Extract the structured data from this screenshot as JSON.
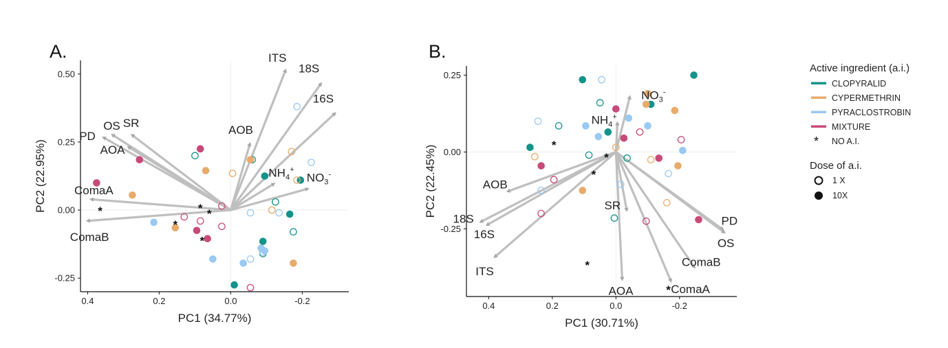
{
  "colors": {
    "CLOPYRALID": "#13938A",
    "CYPERMETHRIN": "#E8AB6B",
    "PYRACLOSTROBIN": "#9AC9F2",
    "MIXTURE": "#C84A78",
    "arrow": "#bfbfbf"
  },
  "legend": {
    "title_ai": "Active ingredient (a.i.)",
    "items": [
      {
        "label": "CLOPYRALID",
        "group": "CLOPYRALID"
      },
      {
        "label": "CYPERMETHRIN",
        "group": "CYPERMETHRIN"
      },
      {
        "label": "PYRACLOSTROBIN",
        "group": "PYRACLOSTROBIN"
      },
      {
        "label": "MIXTURE",
        "group": "MIXTURE"
      }
    ],
    "none_label": "NO A.I.",
    "title_dose": "Dose of a.i.",
    "dose_items": [
      {
        "label": "1 X",
        "fill": "open"
      },
      {
        "label": "10X",
        "fill": "filled"
      }
    ]
  },
  "chart_data": [
    {
      "type": "scatter",
      "panel": "A.",
      "xlabel": "PC1 (34.77%)",
      "ylabel": "PC2 (22.95%)",
      "xlim": [
        0.42,
        -0.33
      ],
      "ylim": [
        -0.3,
        0.55
      ],
      "x_reversed": true,
      "xticks": [
        {
          "v": 0.4,
          "t": "0.4"
        },
        {
          "v": 0.2,
          "t": "0.2"
        },
        {
          "v": 0.0,
          "t": "0.0"
        },
        {
          "v": -0.2,
          "t": "-0.2"
        }
      ],
      "yticks": [
        {
          "v": 0.5,
          "t": "0.50"
        },
        {
          "v": 0.25,
          "t": "0.25"
        },
        {
          "v": 0.0,
          "t": "0.00"
        },
        {
          "v": -0.25,
          "t": "-0.25"
        }
      ],
      "vectors": [
        {
          "name": "ITS",
          "x": -0.155,
          "y": 0.52
        },
        {
          "name": "18S",
          "x": -0.255,
          "y": 0.47
        },
        {
          "name": "16S",
          "x": -0.295,
          "y": 0.36
        },
        {
          "name": "AOB",
          "x": -0.055,
          "y": 0.25
        },
        {
          "name": "NH4+",
          "x": -0.125,
          "y": 0.1
        },
        {
          "name": "NO3-",
          "x": -0.22,
          "y": 0.08
        },
        {
          "name": "OS",
          "x": 0.335,
          "y": 0.28
        },
        {
          "name": "PD",
          "x": 0.36,
          "y": 0.27
        },
        {
          "name": "SR",
          "x": 0.28,
          "y": 0.28
        },
        {
          "name": "AOA",
          "x": 0.29,
          "y": 0.235
        },
        {
          "name": "ComaA",
          "x": 0.395,
          "y": 0.04
        },
        {
          "name": "ComaB",
          "x": 0.405,
          "y": -0.04
        }
      ],
      "points": [
        {
          "g": "CLOPYRALID",
          "d": "1X",
          "x": -0.06,
          "y": 0.185
        },
        {
          "g": "CLOPYRALID",
          "d": "1X",
          "x": -0.125,
          "y": 0.03
        },
        {
          "g": "CLOPYRALID",
          "d": "1X",
          "x": -0.175,
          "y": -0.08
        },
        {
          "g": "CLOPYRALID",
          "d": "1X",
          "x": 0.1,
          "y": 0.2
        },
        {
          "g": "CLOPYRALID",
          "d": "1X",
          "x": -0.09,
          "y": -0.16
        },
        {
          "g": "CLOPYRALID",
          "d": "10X",
          "x": -0.095,
          "y": 0.125
        },
        {
          "g": "CLOPYRALID",
          "d": "10X",
          "x": -0.195,
          "y": 0.11
        },
        {
          "g": "CLOPYRALID",
          "d": "10X",
          "x": -0.165,
          "y": -0.015
        },
        {
          "g": "CLOPYRALID",
          "d": "10X",
          "x": -0.09,
          "y": -0.115
        },
        {
          "g": "CLOPYRALID",
          "d": "10X",
          "x": -0.01,
          "y": -0.275
        },
        {
          "g": "CYPERMETHRIN",
          "d": "1X",
          "x": -0.17,
          "y": 0.215
        },
        {
          "g": "CYPERMETHRIN",
          "d": "1X",
          "x": -0.005,
          "y": 0.135
        },
        {
          "g": "CYPERMETHRIN",
          "d": "1X",
          "x": -0.185,
          "y": 0.11
        },
        {
          "g": "CYPERMETHRIN",
          "d": "1X",
          "x": -0.115,
          "y": 0.0
        },
        {
          "g": "CYPERMETHRIN",
          "d": "10X",
          "x": 0.07,
          "y": 0.145
        },
        {
          "g": "CYPERMETHRIN",
          "d": "10X",
          "x": -0.055,
          "y": 0.185
        },
        {
          "g": "CYPERMETHRIN",
          "d": "10X",
          "x": 0.275,
          "y": 0.055
        },
        {
          "g": "CYPERMETHRIN",
          "d": "10X",
          "x": 0.155,
          "y": -0.065
        },
        {
          "g": "CYPERMETHRIN",
          "d": "10X",
          "x": -0.175,
          "y": -0.195
        },
        {
          "g": "PYRACLOSTROBIN",
          "d": "1X",
          "x": -0.185,
          "y": 0.38
        },
        {
          "g": "PYRACLOSTROBIN",
          "d": "1X",
          "x": -0.225,
          "y": 0.175
        },
        {
          "g": "PYRACLOSTROBIN",
          "d": "1X",
          "x": -0.055,
          "y": -0.01
        },
        {
          "g": "PYRACLOSTROBIN",
          "d": "1X",
          "x": -0.135,
          "y": -0.01
        },
        {
          "g": "PYRACLOSTROBIN",
          "d": "1X",
          "x": -0.055,
          "y": -0.18
        },
        {
          "g": "PYRACLOSTROBIN",
          "d": "1X",
          "x": -0.09,
          "y": -0.155
        },
        {
          "g": "PYRACLOSTROBIN",
          "d": "10X",
          "x": 0.215,
          "y": -0.045
        },
        {
          "g": "PYRACLOSTROBIN",
          "d": "10X",
          "x": 0.05,
          "y": -0.18
        },
        {
          "g": "PYRACLOSTROBIN",
          "d": "10X",
          "x": -0.035,
          "y": -0.195
        },
        {
          "g": "PYRACLOSTROBIN",
          "d": "10X",
          "x": -0.085,
          "y": -0.14
        },
        {
          "g": "PYRACLOSTROBIN",
          "d": "10X",
          "x": -0.095,
          "y": -0.15
        },
        {
          "g": "MIXTURE",
          "d": "1X",
          "x": 0.025,
          "y": 0.015
        },
        {
          "g": "MIXTURE",
          "d": "1X",
          "x": 0.13,
          "y": -0.025
        },
        {
          "g": "MIXTURE",
          "d": "1X",
          "x": 0.085,
          "y": -0.04
        },
        {
          "g": "MIXTURE",
          "d": "1X",
          "x": 0.025,
          "y": -0.06
        },
        {
          "g": "MIXTURE",
          "d": "1X",
          "x": -0.055,
          "y": -0.285
        },
        {
          "g": "MIXTURE",
          "d": "10X",
          "x": 0.375,
          "y": 0.1
        },
        {
          "g": "MIXTURE",
          "d": "10X",
          "x": 0.255,
          "y": 0.185
        },
        {
          "g": "MIXTURE",
          "d": "10X",
          "x": 0.085,
          "y": 0.225
        },
        {
          "g": "MIXTURE",
          "d": "10X",
          "x": 0.095,
          "y": -0.075
        },
        {
          "g": "MIXTURE",
          "d": "10X",
          "x": 0.065,
          "y": -0.105
        }
      ],
      "none_points": [
        {
          "x": 0.365,
          "y": 0.0
        },
        {
          "x": 0.085,
          "y": 0.01
        },
        {
          "x": 0.06,
          "y": -0.01
        },
        {
          "x": 0.155,
          "y": -0.05
        },
        {
          "x": 0.08,
          "y": -0.11
        }
      ]
    },
    {
      "type": "scatter",
      "panel": "B.",
      "xlabel": "PC1 (30.71%)",
      "ylabel": "PC2 (22.45%)",
      "xlim": [
        0.47,
        -0.38
      ],
      "ylim": [
        -0.47,
        0.28
      ],
      "x_reversed": true,
      "xticks": [
        {
          "v": 0.4,
          "t": "0.4"
        },
        {
          "v": 0.2,
          "t": "0.2"
        },
        {
          "v": 0.0,
          "t": "0.0"
        },
        {
          "v": -0.2,
          "t": "-0.2"
        }
      ],
      "yticks": [
        {
          "v": 0.25,
          "t": "0.25"
        },
        {
          "v": 0.0,
          "t": "0.00"
        },
        {
          "v": -0.25,
          "t": "-0.25"
        }
      ],
      "vectors": [
        {
          "name": "NO3-",
          "x": -0.045,
          "y": 0.185
        },
        {
          "name": "NH4+",
          "x": -0.005,
          "y": 0.1
        },
        {
          "name": "AOB",
          "x": 0.345,
          "y": -0.13
        },
        {
          "name": "18S",
          "x": 0.43,
          "y": -0.23
        },
        {
          "name": "16S",
          "x": 0.41,
          "y": -0.24
        },
        {
          "name": "ITS",
          "x": 0.385,
          "y": -0.345
        },
        {
          "name": "SR",
          "x": -0.035,
          "y": -0.195
        },
        {
          "name": "AOA",
          "x": -0.02,
          "y": -0.42
        },
        {
          "name": "ComaA",
          "x": -0.175,
          "y": -0.425
        },
        {
          "name": "ComaB",
          "x": -0.25,
          "y": -0.38
        },
        {
          "name": "PD",
          "x": -0.34,
          "y": -0.255
        },
        {
          "name": "OS",
          "x": -0.345,
          "y": -0.265
        }
      ],
      "points": [
        {
          "g": "CLOPYRALID",
          "d": "1X",
          "x": 0.05,
          "y": 0.16
        },
        {
          "g": "CLOPYRALID",
          "d": "1X",
          "x": 0.085,
          "y": -0.01
        },
        {
          "g": "CLOPYRALID",
          "d": "1X",
          "x": -0.035,
          "y": -0.02
        },
        {
          "g": "CLOPYRALID",
          "d": "1X",
          "x": 0.005,
          "y": -0.215
        },
        {
          "g": "CLOPYRALID",
          "d": "1X",
          "x": 0.18,
          "y": 0.085
        },
        {
          "g": "CLOPYRALID",
          "d": "10X",
          "x": 0.105,
          "y": 0.235
        },
        {
          "g": "CLOPYRALID",
          "d": "10X",
          "x": 0.025,
          "y": 0.065
        },
        {
          "g": "CLOPYRALID",
          "d": "10X",
          "x": 0.27,
          "y": 0.015
        },
        {
          "g": "CLOPYRALID",
          "d": "10X",
          "x": -0.11,
          "y": 0.155
        },
        {
          "g": "CLOPYRALID",
          "d": "10X",
          "x": -0.245,
          "y": 0.25
        },
        {
          "g": "CYPERMETHRIN",
          "d": "1X",
          "x": 0.0,
          "y": 0.015
        },
        {
          "g": "CYPERMETHRIN",
          "d": "1X",
          "x": -0.11,
          "y": -0.025
        },
        {
          "g": "CYPERMETHRIN",
          "d": "1X",
          "x": -0.16,
          "y": -0.165
        },
        {
          "g": "CYPERMETHRIN",
          "d": "1X",
          "x": 0.255,
          "y": -0.015
        },
        {
          "g": "CYPERMETHRIN",
          "d": "10X",
          "x": -0.1,
          "y": 0.19
        },
        {
          "g": "CYPERMETHRIN",
          "d": "10X",
          "x": -0.095,
          "y": 0.155
        },
        {
          "g": "CYPERMETHRIN",
          "d": "10X",
          "x": -0.185,
          "y": 0.135
        },
        {
          "g": "CYPERMETHRIN",
          "d": "10X",
          "x": -0.195,
          "y": -0.045
        },
        {
          "g": "CYPERMETHRIN",
          "d": "10X",
          "x": 0.105,
          "y": -0.125
        },
        {
          "g": "PYRACLOSTROBIN",
          "d": "1X",
          "x": 0.045,
          "y": 0.235
        },
        {
          "g": "PYRACLOSTROBIN",
          "d": "1X",
          "x": 0.245,
          "y": 0.1
        },
        {
          "g": "PYRACLOSTROBIN",
          "d": "1X",
          "x": -0.165,
          "y": -0.07
        },
        {
          "g": "PYRACLOSTROBIN",
          "d": "1X",
          "x": 0.235,
          "y": -0.125
        },
        {
          "g": "PYRACLOSTROBIN",
          "d": "1X",
          "x": -0.015,
          "y": -0.105
        },
        {
          "g": "PYRACLOSTROBIN",
          "d": "10X",
          "x": 0.095,
          "y": 0.085
        },
        {
          "g": "PYRACLOSTROBIN",
          "d": "10X",
          "x": -0.04,
          "y": 0.11
        },
        {
          "g": "PYRACLOSTROBIN",
          "d": "10X",
          "x": 0.055,
          "y": 0.05
        },
        {
          "g": "PYRACLOSTROBIN",
          "d": "10X",
          "x": -0.1,
          "y": 0.085
        },
        {
          "g": "PYRACLOSTROBIN",
          "d": "10X",
          "x": -0.21,
          "y": 0.005
        },
        {
          "g": "MIXTURE",
          "d": "1X",
          "x": -0.075,
          "y": 0.065
        },
        {
          "g": "MIXTURE",
          "d": "1X",
          "x": -0.205,
          "y": 0.04
        },
        {
          "g": "MIXTURE",
          "d": "1X",
          "x": 0.195,
          "y": -0.09
        },
        {
          "g": "MIXTURE",
          "d": "1X",
          "x": 0.235,
          "y": -0.2
        },
        {
          "g": "MIXTURE",
          "d": "1X",
          "x": -0.095,
          "y": -0.225
        },
        {
          "g": "MIXTURE",
          "d": "10X",
          "x": 0.0,
          "y": 0.14
        },
        {
          "g": "MIXTURE",
          "d": "10X",
          "x": -0.025,
          "y": 0.045
        },
        {
          "g": "MIXTURE",
          "d": "10X",
          "x": 0.235,
          "y": -0.045
        },
        {
          "g": "MIXTURE",
          "d": "10X",
          "x": -0.135,
          "y": -0.02
        },
        {
          "g": "MIXTURE",
          "d": "10X",
          "x": -0.26,
          "y": -0.22
        }
      ],
      "none_points": [
        {
          "x": 0.195,
          "y": 0.025
        },
        {
          "x": 0.03,
          "y": -0.015
        },
        {
          "x": 0.07,
          "y": -0.07
        },
        {
          "x": 0.09,
          "y": -0.365
        },
        {
          "x": -0.165,
          "y": -0.445
        }
      ]
    }
  ]
}
